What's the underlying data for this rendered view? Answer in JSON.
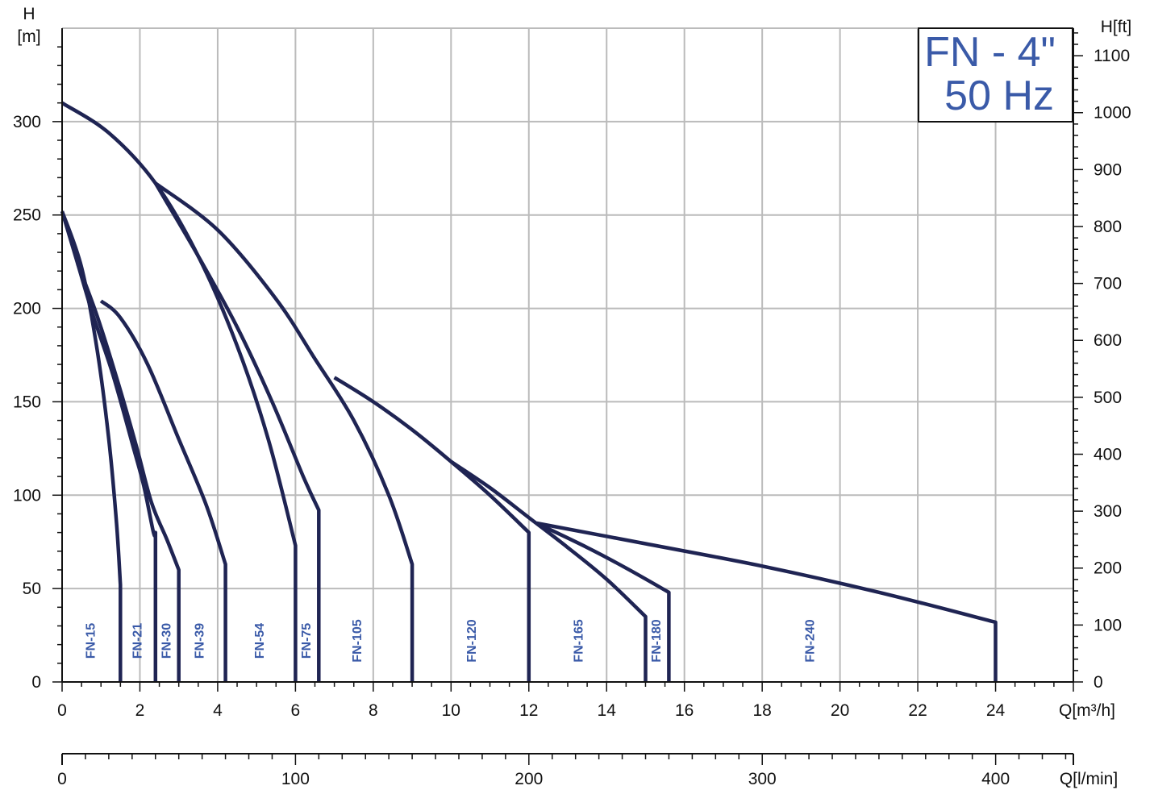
{
  "chart_data": {
    "type": "line",
    "title": "FN - 4\"",
    "subtitle": "50 Hz",
    "xlabel": "Q[m³/h]",
    "ylabel_left_top": "H",
    "ylabel_left_unit": "[m]",
    "ylabel_right": "H[ft]",
    "secondary_xlabel": "Q[l/min]",
    "xlim": [
      0,
      26
    ],
    "ylim": [
      0,
      350
    ],
    "y_right_lim_ft": [
      0,
      1148.3
    ],
    "secondary_x_lim_lmin": [
      0,
      433.3
    ],
    "grid": true,
    "x_ticks": [
      "0",
      "2",
      "4",
      "6",
      "8",
      "10",
      "12",
      "14",
      "16",
      "18",
      "20",
      "22",
      "24"
    ],
    "y_ticks": [
      "0",
      "50",
      "100",
      "150",
      "200",
      "250",
      "300"
    ],
    "y_right_ticks": [
      "0",
      "100",
      "200",
      "300",
      "400",
      "500",
      "600",
      "700",
      "800",
      "900",
      "1000",
      "1100"
    ],
    "secondary_x_ticks": [
      "0",
      "100",
      "200",
      "300",
      "400"
    ],
    "curve_color": "#1f2453",
    "label_color": "#3a5aa8",
    "grid_color": "#bbbbbb",
    "series": [
      {
        "name": "FN-15",
        "label_x": 0.75,
        "x": [
          0,
          0.5,
          0.9,
          1.2,
          1.4,
          1.5,
          1.5
        ],
        "y": [
          252,
          222,
          178,
          130,
          85,
          52,
          0
        ]
      },
      {
        "name": "FN-21",
        "label_x": 1.95,
        "x": [
          0,
          0.4,
          0.8,
          1.3,
          1.8,
          2.1,
          2.35,
          2.4,
          2.4
        ],
        "y": [
          252,
          224,
          196,
          165,
          128,
          105,
          80,
          80,
          0
        ]
      },
      {
        "name": "FN-30",
        "label_x": 2.7,
        "x": [
          0.4,
          0.9,
          1.4,
          1.9,
          2.3,
          2.7,
          3.0,
          3.0
        ],
        "y": [
          224,
          196,
          163,
          127,
          96,
          76,
          60,
          0
        ]
      },
      {
        "name": "FN-39",
        "label_x": 3.55,
        "x": [
          1.0,
          1.5,
          2.2,
          3.0,
          3.7,
          4.2,
          4.2
        ],
        "y": [
          204,
          195,
          170,
          130,
          95,
          63,
          0
        ]
      },
      {
        "name": "FN-54",
        "label_x": 5.1,
        "x": [
          0,
          1.2,
          2.4,
          3.5,
          4.5,
          5.3,
          6.0,
          6.0
        ],
        "y": [
          310,
          294,
          267,
          228,
          180,
          130,
          73,
          0
        ]
      },
      {
        "name": "FN-75",
        "label_x": 6.3,
        "x": [
          2.4,
          3.5,
          4.5,
          5.4,
          6.2,
          6.6,
          6.6
        ],
        "y": [
          267,
          228,
          190,
          150,
          110,
          92,
          0
        ]
      },
      {
        "name": "FN-105",
        "label_x": 7.6,
        "x": [
          2.4,
          4.0,
          5.5,
          6.5,
          7.5,
          8.4,
          9.0,
          9.0
        ],
        "y": [
          267,
          242,
          205,
          173,
          140,
          100,
          63,
          0
        ]
      },
      {
        "name": "FN-120",
        "label_x": 10.55,
        "x": [
          7.0,
          8.0,
          9.0,
          10.0,
          11.0,
          12.0,
          12.0
        ],
        "y": [
          163,
          150,
          135,
          118,
          100,
          80,
          0
        ]
      },
      {
        "name": "FN-165",
        "label_x": 13.3,
        "x": [
          10.0,
          11.0,
          12.0,
          13.0,
          14.0,
          15.0,
          15.0
        ],
        "y": [
          118,
          104,
          88,
          72,
          55,
          35,
          0
        ]
      },
      {
        "name": "FN-180",
        "label_x": 15.3,
        "x": [
          12.2,
          13.5,
          14.5,
          15.6,
          15.6
        ],
        "y": [
          85,
          72,
          61,
          48,
          0
        ]
      },
      {
        "name": "FN-240",
        "label_x": 19.25,
        "x": [
          12.2,
          15.0,
          18.0,
          21.0,
          24.0,
          24.0
        ],
        "y": [
          85,
          74,
          62,
          48,
          32,
          0
        ]
      }
    ]
  }
}
